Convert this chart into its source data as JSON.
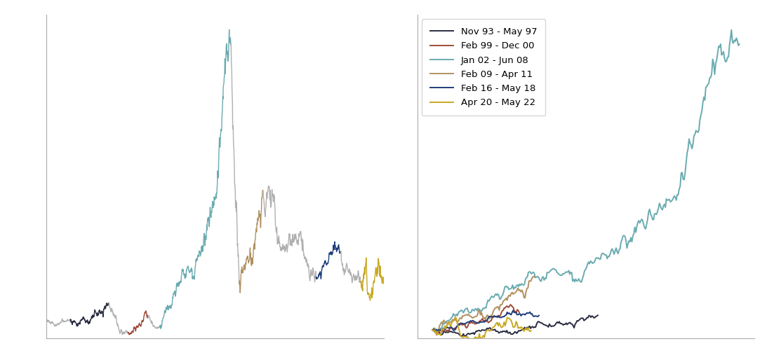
{
  "series_labels": [
    "Nov 93 - May 97",
    "Feb 99 - Dec 00",
    "Jan 02 - Jun 08",
    "Feb 09 - Apr 11",
    "Feb 16 - May 18",
    "Apr 20 - May 22"
  ],
  "series_colors": [
    "#2b2d42",
    "#9e4a3a",
    "#6aabb0",
    "#b09060",
    "#1f3d7a",
    "#c8a820"
  ],
  "gray_color": "#b0b0b0",
  "background_color": "#ffffff",
  "recovery_months": [
    42,
    22,
    78,
    26,
    27,
    25
  ],
  "recovery_gains": [
    0.42,
    0.25,
    3.3,
    0.65,
    0.18,
    0.75
  ],
  "recovery_vols": [
    0.018,
    0.02,
    0.022,
    0.025,
    0.015,
    0.038
  ],
  "recovery_seeds": [
    2,
    4,
    6,
    8,
    10,
    12
  ],
  "bcom_segments": [
    {
      "months": 26,
      "gain": -0.08,
      "vol": 0.012,
      "seed": 1,
      "color": "#b0b0b0"
    },
    {
      "months": 42,
      "gain": 0.42,
      "vol": 0.018,
      "seed": 2,
      "color": "#2b2d42"
    },
    {
      "months": 21,
      "gain": -0.28,
      "vol": 0.018,
      "seed": 3,
      "color": "#b0b0b0"
    },
    {
      "months": 22,
      "gain": 0.25,
      "vol": 0.02,
      "seed": 4,
      "color": "#9e4a3a"
    },
    {
      "months": 13,
      "gain": -0.22,
      "vol": 0.015,
      "seed": 5,
      "color": "#b0b0b0"
    },
    {
      "months": 78,
      "gain": 3.3,
      "vol": 0.022,
      "seed": 6,
      "color": "#6aabb0"
    },
    {
      "months": 9,
      "gain": -0.62,
      "vol": 0.04,
      "seed": 7,
      "color": "#b0b0b0"
    },
    {
      "months": 26,
      "gain": 0.65,
      "vol": 0.025,
      "seed": 8,
      "color": "#b09060"
    },
    {
      "months": 58,
      "gain": -0.52,
      "vol": 0.022,
      "seed": 9,
      "color": "#b0b0b0"
    },
    {
      "months": 27,
      "gain": 0.18,
      "vol": 0.015,
      "seed": 10,
      "color": "#1f3d7a"
    },
    {
      "months": 22,
      "gain": -0.22,
      "vol": 0.022,
      "seed": 11,
      "color": "#b0b0b0"
    },
    {
      "months": 25,
      "gain": 0.75,
      "vol": 0.038,
      "seed": 12,
      "color": "#c8a820"
    }
  ]
}
